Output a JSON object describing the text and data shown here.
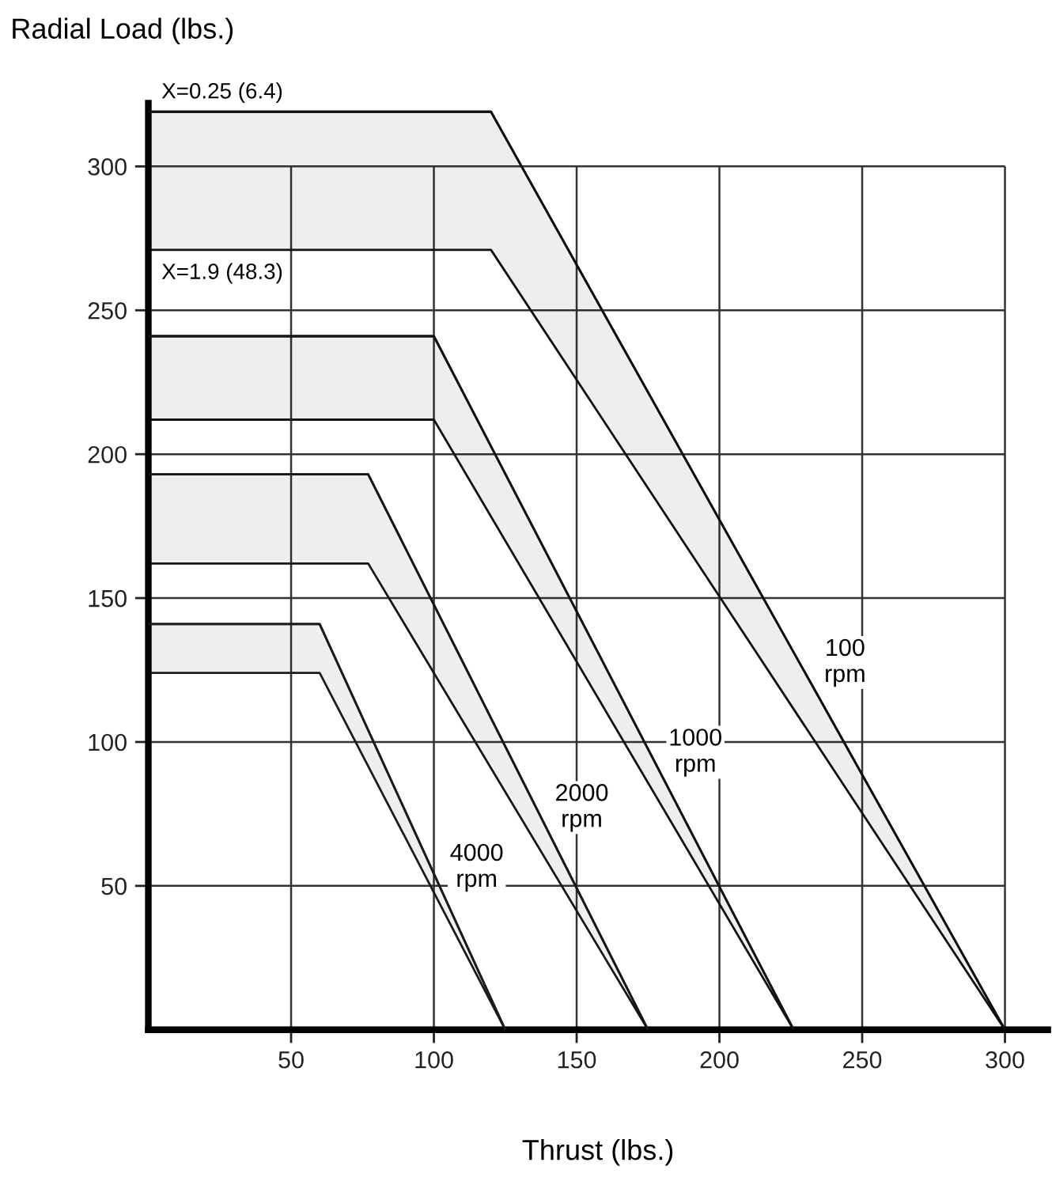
{
  "chart_data": {
    "type": "line",
    "xlabel": "Thrust (lbs.)",
    "ylabel": "Radial Load (lbs.)",
    "xlim": [
      0,
      315
    ],
    "ylim": [
      0,
      322
    ],
    "xticks": [
      50,
      100,
      150,
      200,
      250,
      300
    ],
    "yticks": [
      50,
      100,
      150,
      200,
      250,
      300
    ],
    "grid": true,
    "marker": "none",
    "annotations": [
      {
        "text": "X=0.25 (6.4)",
        "x": 0,
        "y": 319
      },
      {
        "text": "X=1.9 (48.3)",
        "x": 0,
        "y": 271
      }
    ],
    "series": [
      {
        "name": "100\nrpm",
        "color": "#111111",
        "x": [
          0,
          120,
          300
        ],
        "values": [
          319,
          319,
          0
        ],
        "upper": [
          319,
          319,
          0
        ],
        "lower": [
          271,
          271,
          0
        ]
      },
      {
        "name": "1000\nrpm",
        "color": "#141414",
        "x": [
          0,
          100,
          226
        ],
        "values": [
          241,
          241,
          0
        ],
        "upper": [
          241,
          241,
          0
        ],
        "lower": [
          212,
          212,
          0
        ]
      },
      {
        "name": "2000\nrpm",
        "color": "#181818",
        "x": [
          0,
          77,
          175
        ],
        "values": [
          193,
          193,
          0
        ],
        "upper": [
          193,
          193,
          0
        ],
        "lower": [
          162,
          162,
          0
        ]
      },
      {
        "name": "4000\nrpm",
        "color": "#1c1c1c",
        "x": [
          0,
          60,
          125
        ],
        "values": [
          141,
          141,
          0
        ],
        "upper": [
          141,
          141,
          0
        ],
        "lower": [
          124,
          124,
          0
        ]
      }
    ]
  }
}
